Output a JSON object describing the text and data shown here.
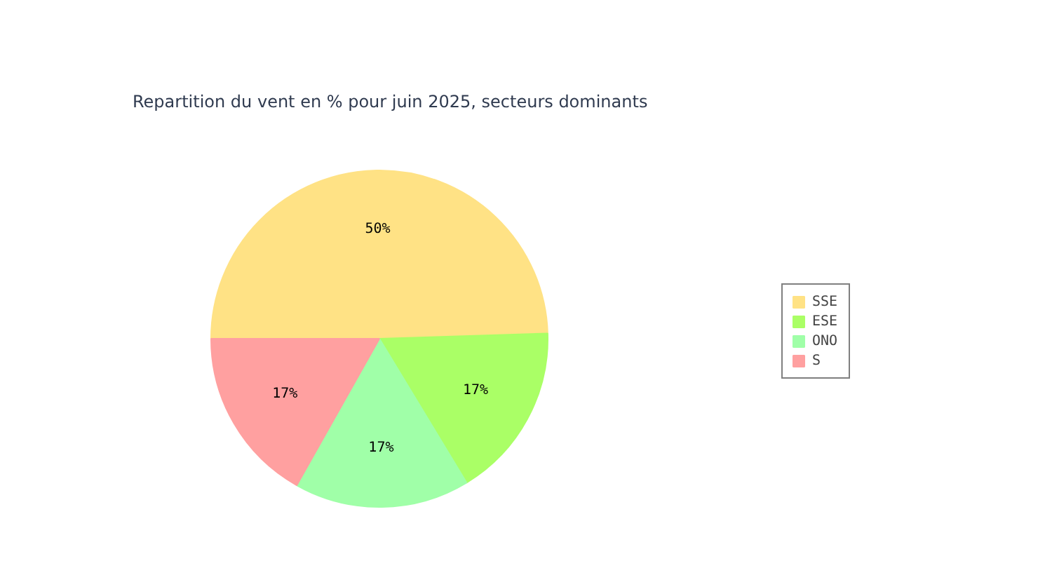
{
  "chart_data": {
    "type": "pie",
    "title": "Repartition du vent en % pour juin 2025, secteurs dominants",
    "categories": [
      "SSE",
      "ESE",
      "ONO",
      "S"
    ],
    "values": [
      50,
      17,
      17,
      17
    ],
    "colors": [
      "#ffe285",
      "#aaff66",
      "#a0ffa8",
      "#ffa0a0"
    ],
    "value_labels": [
      "50%",
      "17%",
      "17%",
      "17%"
    ],
    "legend": "right"
  }
}
